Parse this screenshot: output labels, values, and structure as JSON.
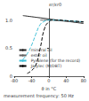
{
  "chart_data": {
    "type": "line",
    "y_label": "εr/εr0",
    "x_label": "ϑ in °C",
    "annotation": "measurement frequency: 50 Hz",
    "xlim": [
      -80,
      80
    ],
    "xticks": [
      -80,
      -40,
      0,
      40,
      80
    ],
    "ylim": [
      0,
      1.2
    ],
    "yticks": [
      0,
      {
        "value": 0.5,
        "label": "0.5"
      },
      {
        "value": 1,
        "label": "1.0"
      }
    ],
    "grid": false,
    "legend": "lower right",
    "series": [
      {
        "name": "mineral oil",
        "color": "#222222",
        "line_style": "solid",
        "x": [
          -60,
          -40,
          -20,
          0,
          20,
          40,
          60,
          80
        ],
        "values": [
          1.08,
          1.06,
          1.04,
          1.02,
          1.0,
          0.98,
          0.96,
          0.94
        ]
      },
      {
        "name": "ester oil",
        "color": "#666666",
        "line_style": "solid",
        "x": [
          -20,
          0,
          20,
          40,
          60,
          80
        ],
        "values": [
          1.0,
          1.0,
          0.99,
          0.98,
          0.97,
          0.96
        ]
      },
      {
        "name": "Pyralene (for the record)",
        "color": "#3bbfd8",
        "line_style": "dashed",
        "x": [
          -60,
          -50,
          -40,
          -30,
          -20,
          -10,
          0,
          20,
          40,
          60,
          80
        ],
        "values": [
          0.3,
          0.4,
          0.55,
          0.75,
          0.92,
          0.98,
          1.0,
          1.0,
          0.99,
          0.98,
          0.97
        ]
      },
      {
        "name": "Jarylec (M/DBT)",
        "color": "#000000",
        "line_style": "dashed",
        "x": [
          -50,
          -40,
          -30,
          -20,
          -10,
          0,
          10,
          20,
          40,
          60,
          80
        ],
        "values": [
          0.05,
          0.1,
          0.2,
          0.5,
          0.85,
          0.97,
          1.0,
          1.0,
          0.99,
          0.98,
          0.97
        ]
      }
    ]
  }
}
